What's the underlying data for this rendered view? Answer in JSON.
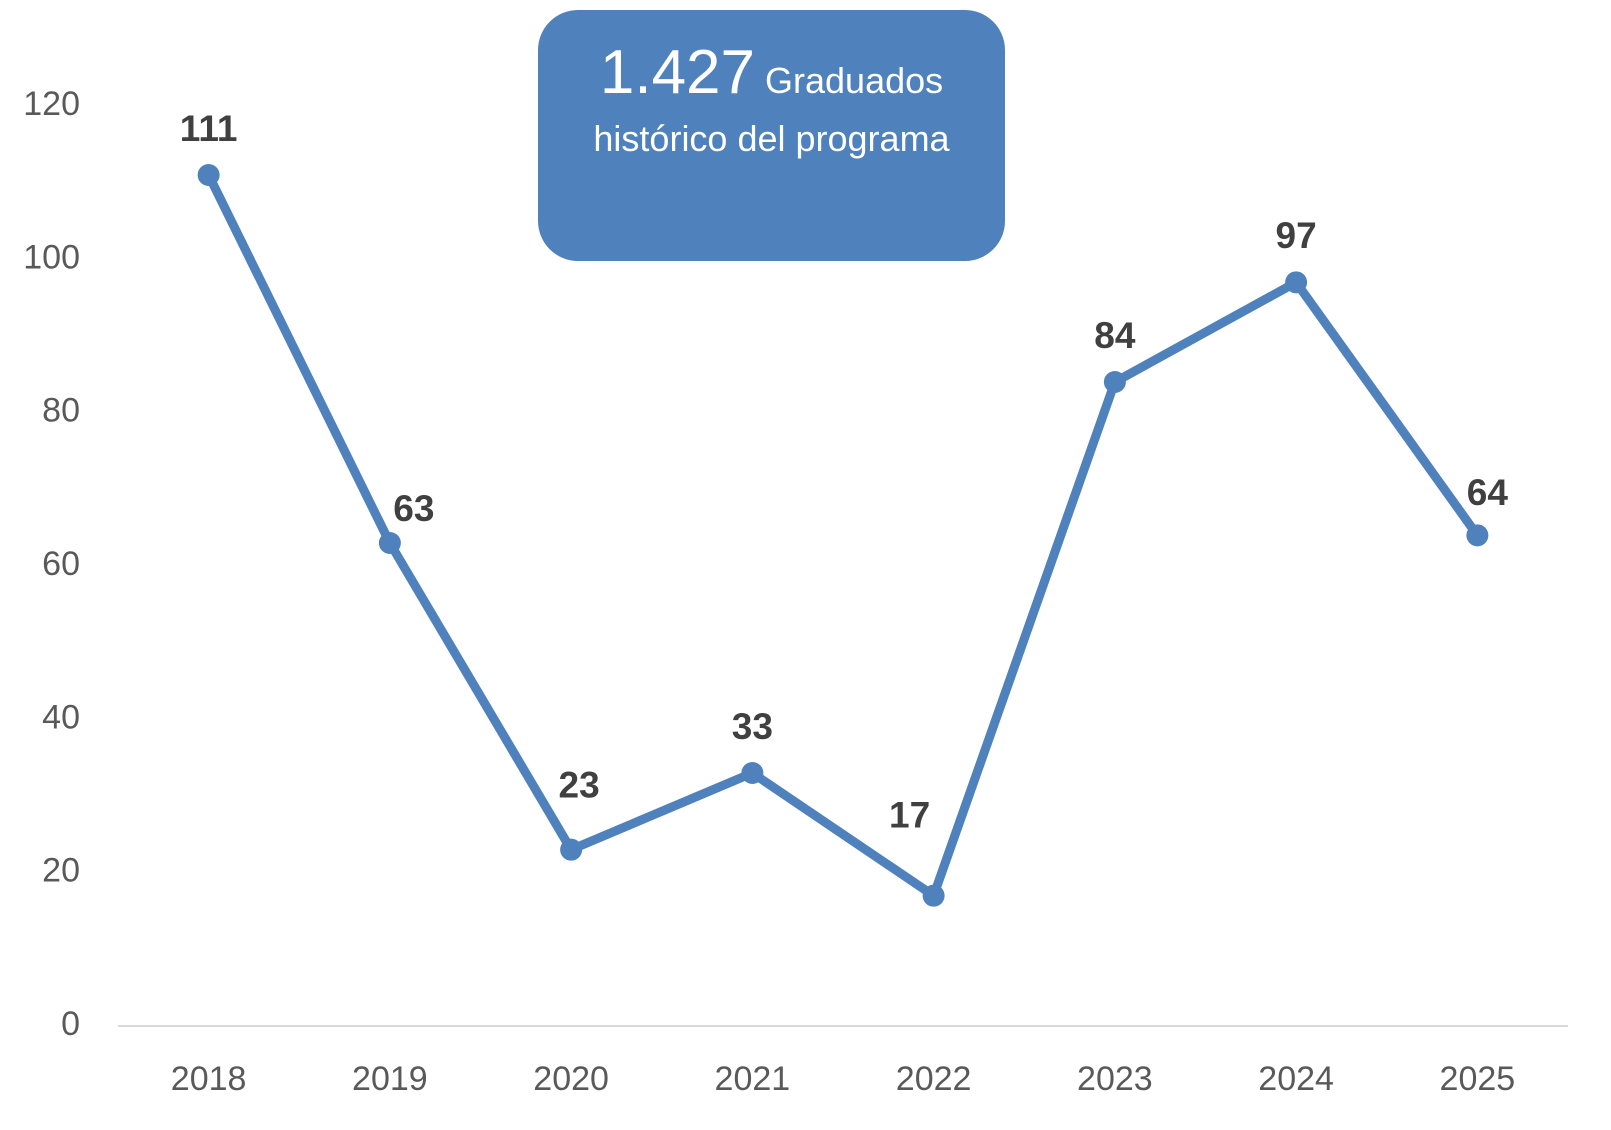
{
  "chart_data": {
    "type": "line",
    "categories": [
      "2018",
      "2019",
      "2020",
      "2021",
      "2022",
      "2023",
      "2024",
      "2025"
    ],
    "series": [
      {
        "color": "#4f81bd",
        "values": [
          111,
          63,
          23,
          33,
          17,
          84,
          97,
          64
        ]
      }
    ],
    "ylim": [
      0,
      120
    ],
    "yticks": [
      0,
      20,
      40,
      60,
      80,
      100,
      120
    ],
    "grid": false,
    "annotation": {
      "highlight": "1.427",
      "text": "Graduados histórico del programa"
    }
  }
}
